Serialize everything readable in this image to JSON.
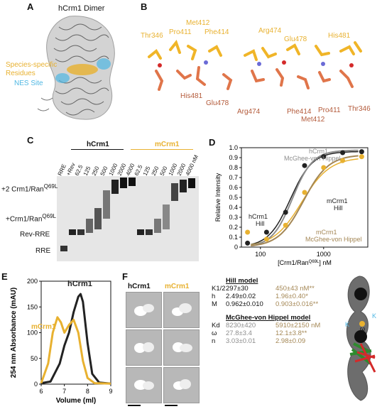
{
  "panels": {
    "A": {
      "letter": "A",
      "title": "hCrm1 Dimer",
      "label_species": "Species-specific\nResidues",
      "label_nes": "NES Site"
    },
    "B": {
      "letter": "B",
      "residues_top": [
        "Thr346",
        "Met412",
        "Pro411",
        "Phe414",
        "Arg474",
        "Glu478",
        "His481"
      ],
      "residues_bottom": [
        "His481",
        "Glu478",
        "Arg474",
        "Phe414",
        "Met412",
        "Pro411",
        "Thr346"
      ]
    },
    "C": {
      "letter": "C",
      "group_h": "hCrm1",
      "group_m": "mCrm1",
      "lanes": [
        "RRE",
        "+Rev",
        "62.5",
        "125",
        "250",
        "500",
        "1000",
        "2000",
        "4000",
        "62.5",
        "125",
        "250",
        "500",
        "1000",
        "2000",
        "4000 nM"
      ],
      "band_labels": [
        "+2 Crm1/Ran",
        "+Crm1/Ran",
        "Rev-RRE",
        "RRE"
      ],
      "ran_sup": "Q69L"
    },
    "D": {
      "letter": "D",
      "chart_data": {
        "type": "scatter",
        "xlabel": "[Crm1/Ran",
        "xlabel_sup": "Q69L",
        "xlabel_suffix": "] nM",
        "ylabel": "Relative Intensity",
        "xscale": "log",
        "xlim": [
          50,
          5000
        ],
        "ylim": [
          0,
          1
        ],
        "yticks": [
          "0",
          "0.1",
          "0.2",
          "0.3",
          "0.4",
          "0.5",
          "0.6",
          "0.7",
          "0.8",
          "0.9",
          "1.0"
        ],
        "xticks": [
          "100",
          "1000"
        ],
        "series": [
          {
            "name": "hCrm1",
            "color": "#222222",
            "x": [
              62.5,
              125,
              250,
              500,
              1000,
              2000,
              4000
            ],
            "y": [
              0.04,
              0.15,
              0.35,
              0.82,
              0.91,
              0.95,
              0.96
            ]
          },
          {
            "name": "mCrm1",
            "color": "#e8b130",
            "x": [
              62.5,
              125,
              250,
              500,
              1000,
              2000,
              4000
            ],
            "y": [
              0.15,
              0.08,
              0.22,
              0.55,
              0.8,
              0.87,
              0.91
            ]
          }
        ],
        "annotations": [
          {
            "text": "hCrm1",
            "color": "#8d8d8d"
          },
          {
            "text": "McGhee-von Hippel",
            "color": "#8d8d8d"
          },
          {
            "text": "mCrm1",
            "color": "#222222"
          },
          {
            "text": "Hill",
            "color": "#222222"
          },
          {
            "text": "hCrm1",
            "color": "#222222"
          },
          {
            "text": "Hill",
            "color": "#222222"
          },
          {
            "text": "mCrm1",
            "color": "#a48755"
          },
          {
            "text": "McGhee-von Hippel",
            "color": "#a48755"
          }
        ]
      }
    },
    "E": {
      "letter": "E",
      "chart_data": {
        "type": "line",
        "xlabel": "Volume (ml)",
        "ylabel": "254 nm Absorbance (mAU)",
        "xlim": [
          6,
          9
        ],
        "ylim": [
          0,
          200
        ],
        "xticks": [
          "6",
          "7",
          "8",
          "9"
        ],
        "yticks": [
          "0",
          "50",
          "100",
          "150",
          "200"
        ],
        "series": [
          {
            "name": "hCrm1",
            "color": "#222222",
            "x": [
              6.0,
              6.4,
              6.8,
              7.0,
              7.2,
              7.4,
              7.6,
              7.7,
              7.8,
              8.0,
              8.2,
              8.5,
              9.0
            ],
            "y": [
              2,
              5,
              40,
              75,
              100,
              140,
              170,
              175,
              160,
              80,
              20,
              3,
              1
            ]
          },
          {
            "name": "mCrm1",
            "color": "#e8b130",
            "x": [
              6.0,
              6.3,
              6.5,
              6.7,
              6.85,
              7.0,
              7.2,
              7.4,
              7.6,
              7.8,
              8.0,
              8.3,
              9.0
            ],
            "y": [
              2,
              40,
              100,
              130,
              120,
              100,
              115,
              125,
              100,
              45,
              12,
              2,
              1
            ]
          }
        ]
      }
    },
    "F": {
      "letter": "F",
      "col_h": "hCrm1",
      "col_m": "mCrm1"
    },
    "table": {
      "hill_title": "Hill model",
      "hill_rows": [
        {
          "param": "K1/2",
          "h": "297±30",
          "m": "450±43 nM**"
        },
        {
          "param": "h",
          "h": "2.49±0.02",
          "m": "1.96±0.40*"
        },
        {
          "param": "M",
          "h": "0.962±0.010",
          "m": "0.903±0.016**"
        }
      ],
      "mvh_title": "McGhee-von Hippel model",
      "mvh_rows": [
        {
          "param": "Kd",
          "h": "8230±420",
          "m": "5910±2150 nM"
        },
        {
          "param": "ω",
          "h": "27.8±3.4",
          "m": "12.1±3.8**"
        },
        {
          "param": "n",
          "h": "3.03±0.01",
          "m": "2.98±0.09"
        }
      ],
      "schematic_labels": {
        "k_left": "K",
        "omega": "ω",
        "k_right": "K"
      }
    }
  }
}
